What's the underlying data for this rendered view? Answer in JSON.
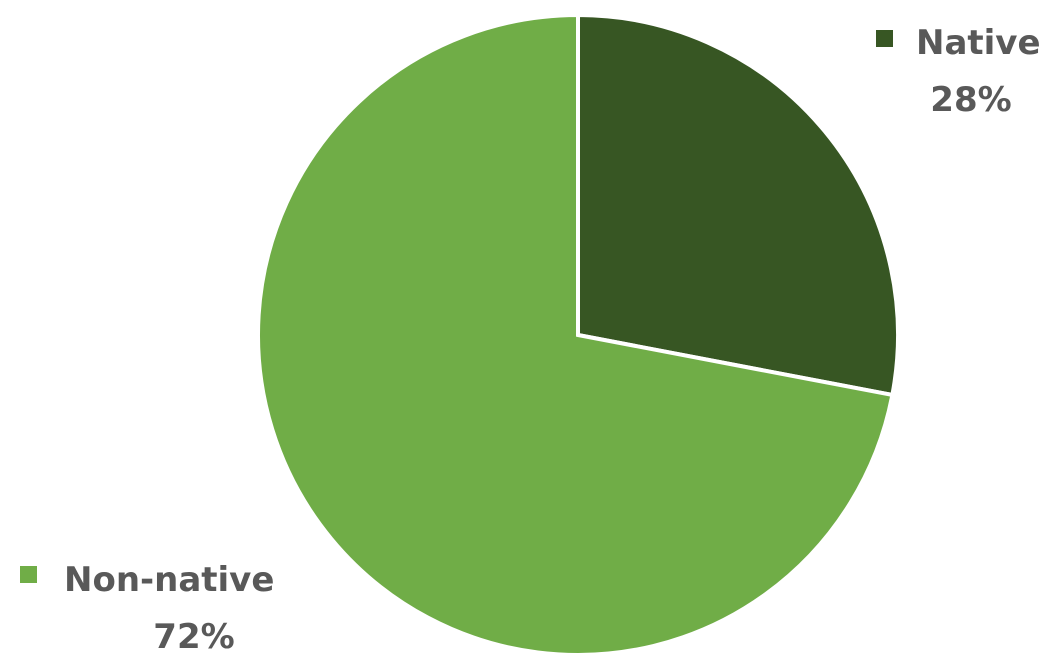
{
  "chart_data": {
    "type": "pie",
    "title": "",
    "slices": [
      {
        "label": "Native",
        "value": 28,
        "percent_label": "28%",
        "color": "#375623"
      },
      {
        "label": "Non-native",
        "value": 72,
        "percent_label": "72%",
        "color": "#70AD47"
      }
    ],
    "slice_border_color": "#ffffff",
    "label_text_color": "#595959"
  }
}
